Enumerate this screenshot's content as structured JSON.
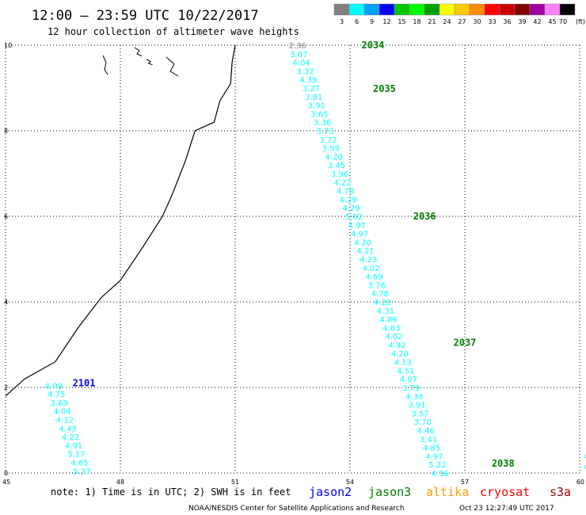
{
  "header": {
    "title": "12:00 – 23:59 UTC 10/22/2017",
    "subtitle": "12 hour collection of altimeter wave heights"
  },
  "color_scale": {
    "labels": [
      "3",
      "6",
      "9",
      "12",
      "15",
      "18",
      "21",
      "24",
      "27",
      "30",
      "33",
      "36",
      "39",
      "42",
      "45",
      "70"
    ],
    "unit": "(ft)",
    "colors": [
      "#808080",
      "#00ffff",
      "#00a0ff",
      "#0000ff",
      "#00c800",
      "#00ff00",
      "#00a000",
      "#ffff00",
      "#ffc800",
      "#ff8c00",
      "#ff0000",
      "#c80000",
      "#800000",
      "#a000a0",
      "#ff80ff",
      "#000000"
    ]
  },
  "notes": {
    "text": "note: 1) Time is in UTC; 2) SWH is in feet",
    "footer_left": "NOAA/NESDIS Center for Satellite Applications and Research",
    "footer_right": "Oct 23 12:27:49 UTC 2017"
  },
  "satellites": [
    {
      "name": "jason2",
      "color": "#0000ff"
    },
    {
      "name": "jason3",
      "color": "#008000"
    },
    {
      "name": "altika",
      "color": "#ffa000"
    },
    {
      "name": "cryosat",
      "color": "#ff0000"
    },
    {
      "name": "s3a",
      "color": "#a00000"
    }
  ],
  "chart_data": {
    "type": "scatter",
    "title": "12:00 – 23:59 UTC 10/22/2017",
    "subtitle": "12 hour collection of altimeter wave heights",
    "xlim": [
      45,
      60
    ],
    "ylim": [
      0,
      10
    ],
    "x_ticks": [
      "45",
      "48",
      "51",
      "54",
      "57",
      "60"
    ],
    "y_ticks": [
      "0",
      "2",
      "4",
      "6",
      "8",
      "10"
    ],
    "grid": true,
    "coastline": [
      [
        51,
        10
      ],
      [
        50.92,
        9.6
      ],
      [
        50.88,
        9.1
      ],
      [
        50.6,
        8.7
      ],
      [
        50.45,
        8.2
      ],
      [
        49.95,
        8.0
      ],
      [
        49.7,
        7.3
      ],
      [
        49.35,
        6.5
      ],
      [
        49.1,
        6.0
      ],
      [
        48.6,
        5.3
      ],
      [
        48.0,
        4.5
      ],
      [
        47.5,
        4.1
      ],
      [
        46.9,
        3.4
      ],
      [
        46.3,
        2.6
      ],
      [
        45.5,
        2.2
      ],
      [
        45,
        1.8
      ]
    ],
    "series": [
      {
        "name": "jason3",
        "passes": [
          {
            "label": "2034",
            "lon": 54.3,
            "lat": 10.0
          },
          {
            "label": "2035",
            "lon": 54.6,
            "lat": 8.98
          },
          {
            "label": "2036",
            "lon": 55.65,
            "lat": 6.0
          },
          {
            "label": "2037",
            "lon": 56.7,
            "lat": 3.05
          },
          {
            "label": "2038",
            "lon": 57.7,
            "lat": 0.22
          }
        ],
        "points": [
          {
            "lon": 52.4,
            "lat": 10.0,
            "swh": "2.36"
          },
          {
            "lon": 52.43,
            "lat": 9.8,
            "swh": "3.07"
          },
          {
            "lon": 52.5,
            "lat": 9.6,
            "swh": "4.04"
          },
          {
            "lon": 52.6,
            "lat": 9.4,
            "swh": "3.32"
          },
          {
            "lon": 52.68,
            "lat": 9.2,
            "swh": "4.39"
          },
          {
            "lon": 52.75,
            "lat": 9.0,
            "swh": "3.27"
          },
          {
            "lon": 52.82,
            "lat": 8.8,
            "swh": "3.81"
          },
          {
            "lon": 52.9,
            "lat": 8.6,
            "swh": "3.91"
          },
          {
            "lon": 52.97,
            "lat": 8.4,
            "swh": "3.65"
          },
          {
            "lon": 53.05,
            "lat": 8.2,
            "swh": "3.36"
          },
          {
            "lon": 53.12,
            "lat": 8.0,
            "swh": "3.73"
          },
          {
            "lon": 53.2,
            "lat": 7.8,
            "swh": "3.72"
          },
          {
            "lon": 53.27,
            "lat": 7.6,
            "swh": "3.59"
          },
          {
            "lon": 53.35,
            "lat": 7.4,
            "swh": "4.20"
          },
          {
            "lon": 53.42,
            "lat": 7.2,
            "swh": "3.45"
          },
          {
            "lon": 53.5,
            "lat": 7.0,
            "swh": "3.96"
          },
          {
            "lon": 53.57,
            "lat": 6.8,
            "swh": "4.22"
          },
          {
            "lon": 53.65,
            "lat": 6.6,
            "swh": "4.78"
          },
          {
            "lon": 53.72,
            "lat": 6.4,
            "swh": "4.29"
          },
          {
            "lon": 53.8,
            "lat": 6.2,
            "swh": "4.29"
          },
          {
            "lon": 53.87,
            "lat": 6.0,
            "swh": "5.02"
          },
          {
            "lon": 53.95,
            "lat": 5.8,
            "swh": "4.97"
          },
          {
            "lon": 54.02,
            "lat": 5.6,
            "swh": "4.97"
          },
          {
            "lon": 54.1,
            "lat": 5.4,
            "swh": "4.20"
          },
          {
            "lon": 54.17,
            "lat": 5.2,
            "swh": "4.11"
          },
          {
            "lon": 54.25,
            "lat": 5.0,
            "swh": "4.23"
          },
          {
            "lon": 54.32,
            "lat": 4.8,
            "swh": "4.02"
          },
          {
            "lon": 54.4,
            "lat": 4.6,
            "swh": "4.69"
          },
          {
            "lon": 54.47,
            "lat": 4.4,
            "swh": "3.76"
          },
          {
            "lon": 54.55,
            "lat": 4.2,
            "swh": "4.78"
          },
          {
            "lon": 54.62,
            "lat": 4.0,
            "swh": "4.20"
          },
          {
            "lon": 54.7,
            "lat": 3.8,
            "swh": "4.31"
          },
          {
            "lon": 54.77,
            "lat": 3.6,
            "swh": "4.89"
          },
          {
            "lon": 54.85,
            "lat": 3.4,
            "swh": "4.83"
          },
          {
            "lon": 54.92,
            "lat": 3.2,
            "swh": "4.62"
          },
          {
            "lon": 55.0,
            "lat": 3.0,
            "swh": "4.92"
          },
          {
            "lon": 55.07,
            "lat": 2.8,
            "swh": "4.20"
          },
          {
            "lon": 55.15,
            "lat": 2.6,
            "swh": "4.13"
          },
          {
            "lon": 55.22,
            "lat": 2.4,
            "swh": "4.51"
          },
          {
            "lon": 55.3,
            "lat": 2.2,
            "swh": "4.87"
          },
          {
            "lon": 55.37,
            "lat": 2.0,
            "swh": "3.79"
          },
          {
            "lon": 55.45,
            "lat": 1.8,
            "swh": "4.34"
          },
          {
            "lon": 55.52,
            "lat": 1.6,
            "swh": "3.91"
          },
          {
            "lon": 55.6,
            "lat": 1.4,
            "swh": "3.57"
          },
          {
            "lon": 55.67,
            "lat": 1.2,
            "swh": "3.70"
          },
          {
            "lon": 55.75,
            "lat": 1.0,
            "swh": "4.46"
          },
          {
            "lon": 55.82,
            "lat": 0.8,
            "swh": "3.41"
          },
          {
            "lon": 55.9,
            "lat": 0.6,
            "swh": "4.85"
          },
          {
            "lon": 55.97,
            "lat": 0.4,
            "swh": "4.97"
          },
          {
            "lon": 56.05,
            "lat": 0.2,
            "swh": "5.22"
          },
          {
            "lon": 56.12,
            "lat": 0.0,
            "swh": "4.36"
          }
        ]
      },
      {
        "name": "jason2",
        "passes": [
          {
            "label": "2101",
            "lon": 46.75,
            "lat": 2.1
          }
        ],
        "points": [
          {
            "lon": 46.03,
            "lat": 2.05,
            "swh": "4.09"
          },
          {
            "lon": 46.1,
            "lat": 1.85,
            "swh": "4.75"
          },
          {
            "lon": 46.17,
            "lat": 1.65,
            "swh": "3.69"
          },
          {
            "lon": 46.25,
            "lat": 1.45,
            "swh": "4.04"
          },
          {
            "lon": 46.32,
            "lat": 1.25,
            "swh": "4.12"
          },
          {
            "lon": 46.4,
            "lat": 1.05,
            "swh": "4.43"
          },
          {
            "lon": 46.47,
            "lat": 0.85,
            "swh": "4.22"
          },
          {
            "lon": 46.55,
            "lat": 0.65,
            "swh": "4.91"
          },
          {
            "lon": 46.62,
            "lat": 0.45,
            "swh": "5.17"
          },
          {
            "lon": 46.7,
            "lat": 0.25,
            "swh": "4.85"
          },
          {
            "lon": 46.77,
            "lat": 0.05,
            "swh": "5.37"
          }
        ]
      },
      {
        "name": "edge",
        "passes": [],
        "points": [
          {
            "lon": 60.1,
            "lat": 0.4,
            "swh": "4"
          },
          {
            "lon": 60.1,
            "lat": 0.15,
            "swh": "4"
          }
        ]
      }
    ]
  }
}
